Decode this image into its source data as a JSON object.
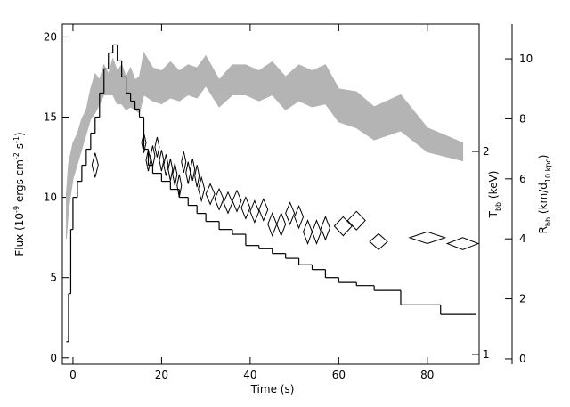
{
  "chart_data": {
    "type": "burst",
    "xlabel": "Time (s)",
    "ylabel": {
      "parts": [
        "Flux (10",
        "-9",
        " ergs cm",
        "-2",
        " s",
        "-1",
        ")"
      ],
      "script": "super"
    },
    "y2label": {
      "parts": [
        "T",
        "bb",
        " (keV)"
      ],
      "script": "sub"
    },
    "y3label": {
      "parts": [
        "R",
        "bb",
        " (km/d",
        "10 kpc",
        ")"
      ],
      "script": "sub"
    },
    "xlim": [
      -2.4,
      91.7
    ],
    "xticks": [
      0,
      20,
      40,
      60,
      80
    ],
    "ylim": [
      -0.4,
      20.8
    ],
    "yticks": [
      0,
      5,
      10,
      15,
      20
    ],
    "y2lim": [
      0.967,
      3.09
    ],
    "y2ticks": [
      1,
      2
    ],
    "y2log": true,
    "y3lim": [
      -0.18,
      11.16
    ],
    "y3ticks": [
      0,
      2,
      4,
      6,
      8,
      10
    ],
    "series": [
      {
        "kind": "histogram",
        "color": "#000000",
        "bins": [
          -1.5,
          -1,
          -0.5,
          0,
          1,
          2,
          3,
          4,
          5,
          6,
          7,
          8,
          9,
          10,
          11,
          12,
          13,
          14,
          15,
          16,
          17,
          18,
          20,
          22,
          24,
          26,
          28,
          30,
          33,
          36,
          39,
          42,
          45,
          48,
          51,
          54,
          57,
          60,
          64,
          68,
          74,
          83,
          91
        ],
        "values": [
          1,
          4,
          8,
          10,
          11,
          12,
          13,
          14,
          15,
          16.5,
          18,
          19,
          19.5,
          18.5,
          17.5,
          16.5,
          16,
          15.5,
          15,
          13,
          12,
          11.5,
          11,
          10.5,
          10,
          9.5,
          9,
          8.5,
          8,
          7.7,
          7,
          6.8,
          6.5,
          6.2,
          5.8,
          5.5,
          5,
          4.7,
          4.5,
          4.2,
          3.3,
          2.7
        ]
      },
      {
        "kind": "band",
        "axis": "y3",
        "color": "#b4b4b4",
        "x": [
          -1.5,
          -1,
          0,
          1,
          2,
          3,
          4,
          5,
          6,
          7,
          8,
          9,
          10,
          11,
          12,
          13,
          14,
          15,
          16,
          18,
          20,
          22,
          24,
          26,
          28,
          30,
          33,
          36,
          39,
          42,
          45,
          48,
          51,
          54,
          57,
          60,
          64,
          68,
          74,
          80,
          88
        ],
        "upper": [
          5.5,
          6.5,
          7.2,
          7.5,
          8,
          8.3,
          9,
          9.5,
          9.3,
          9.8,
          9.5,
          10,
          9.6,
          9.8,
          9.4,
          9.7,
          9.3,
          9.4,
          10.2,
          9.7,
          9.6,
          9.9,
          9.6,
          9.8,
          9.7,
          10.1,
          9.3,
          9.8,
          9.8,
          9.6,
          9.9,
          9.4,
          9.8,
          9.6,
          9.8,
          9,
          8.9,
          8.4,
          8.8,
          7.7,
          7.2
        ],
        "lower": [
          4,
          5,
          6,
          6.5,
          7,
          7.5,
          8,
          8.2,
          8.5,
          8.8,
          8.8,
          8.8,
          8.5,
          8.5,
          8.3,
          8.4,
          8.3,
          8.2,
          8.8,
          8.6,
          8.5,
          8.7,
          8.6,
          8.8,
          8.7,
          9.1,
          8.4,
          8.8,
          8.8,
          8.6,
          8.8,
          8.3,
          8.6,
          8.4,
          8.5,
          7.9,
          7.7,
          7.3,
          7.6,
          6.9,
          6.6
        ]
      },
      {
        "kind": "diamonds",
        "axis": "y2",
        "color": "#000000",
        "x": [
          5,
          16,
          17,
          18,
          19,
          20,
          21,
          22,
          23,
          24,
          25,
          26,
          27,
          28,
          29,
          31,
          33,
          35,
          37,
          39,
          41,
          43,
          45,
          47,
          49,
          51,
          53,
          55,
          57,
          61,
          64,
          69,
          80,
          88
        ],
        "values": [
          1.91,
          2.06,
          1.94,
          1.97,
          2.03,
          1.94,
          1.91,
          1.88,
          1.85,
          1.78,
          1.93,
          1.86,
          1.88,
          1.84,
          1.76,
          1.73,
          1.7,
          1.68,
          1.69,
          1.65,
          1.63,
          1.64,
          1.56,
          1.56,
          1.62,
          1.6,
          1.52,
          1.52,
          1.54,
          1.55,
          1.58,
          1.47,
          1.49,
          1.46
        ],
        "xerr": [
          0.7,
          0.5,
          0.5,
          0.5,
          0.5,
          0.5,
          0.5,
          0.5,
          0.5,
          0.5,
          0.5,
          0.5,
          0.5,
          0.5,
          0.7,
          1,
          1,
          1,
          1,
          1,
          1,
          1,
          1,
          1,
          1,
          1,
          1,
          1,
          1,
          2,
          2,
          2,
          4,
          3.5
        ],
        "yerr": [
          0.08,
          0.07,
          0.07,
          0.07,
          0.07,
          0.07,
          0.07,
          0.07,
          0.07,
          0.07,
          0.07,
          0.07,
          0.07,
          0.07,
          0.07,
          0.06,
          0.06,
          0.06,
          0.06,
          0.06,
          0.06,
          0.06,
          0.06,
          0.06,
          0.06,
          0.06,
          0.06,
          0.06,
          0.06,
          0.05,
          0.05,
          0.04,
          0.03,
          0.03
        ]
      }
    ]
  }
}
